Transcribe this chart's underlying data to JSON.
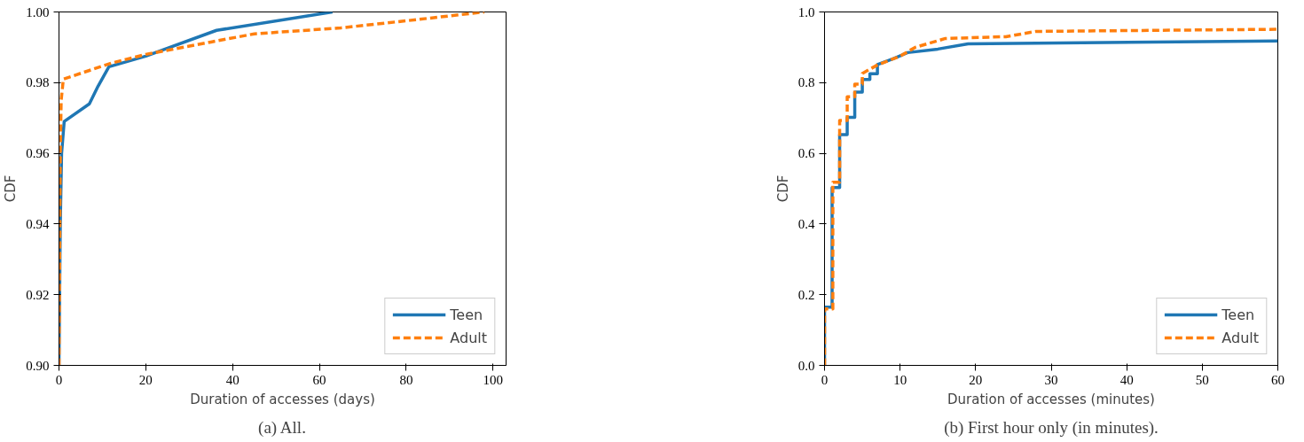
{
  "chart_data": [
    {
      "type": "line",
      "xlabel": "Duration of accesses (days)",
      "ylabel": "CDF",
      "annotations": [
        "(a) All."
      ],
      "xlim": [
        0,
        103
      ],
      "ylim": [
        0.9,
        1.0
      ],
      "xticks": [
        0,
        20,
        40,
        60,
        80,
        100
      ],
      "yticks": [
        {
          "value": 0.9,
          "label": "0.90"
        },
        0.92,
        0.94,
        0.96,
        0.98,
        {
          "value": 1.0,
          "label": "1.00"
        }
      ],
      "grid": false,
      "legend": "bottom right",
      "series": [
        {
          "name": "Teen",
          "color": "#1f77b4",
          "line_style": "solid",
          "x": [
            0,
            0.3,
            0.6,
            1.2,
            7,
            9,
            11.5,
            20,
            36.3,
            63
          ],
          "values": [
            0.9,
            0.94,
            0.96,
            0.969,
            0.974,
            0.979,
            0.9845,
            0.9875,
            0.9948,
            1.0
          ]
        },
        {
          "name": "Adult",
          "color": "#ff7f0e",
          "line_style": "dashed",
          "x": [
            0,
            0.3,
            0.5,
            1,
            12,
            20,
            35,
            45,
            65,
            80,
            98
          ],
          "values": [
            0.9,
            0.96,
            0.975,
            0.981,
            0.9855,
            0.988,
            0.9915,
            0.9938,
            0.9955,
            0.9975,
            1.0
          ]
        }
      ]
    },
    {
      "type": "line",
      "xlabel": "Duration of accesses (minutes)",
      "ylabel": "CDF",
      "annotations": [
        "(b) First hour only (in minutes)."
      ],
      "xlim": [
        0,
        60
      ],
      "ylim": [
        0,
        1.0
      ],
      "xticks": [
        0,
        10,
        20,
        30,
        40,
        50,
        60
      ],
      "yticks": [
        {
          "value": 0,
          "label": "0.0"
        },
        0.2,
        0.4,
        0.6,
        0.8,
        {
          "value": 1.0,
          "label": "1.0"
        }
      ],
      "grid": false,
      "legend": "bottom right",
      "series": [
        {
          "name": "Teen",
          "color": "#1f77b4",
          "line_style": "solid",
          "x": [
            0,
            0,
            1,
            1,
            2,
            2,
            3,
            3,
            4,
            4,
            5,
            5,
            6,
            6,
            7,
            7,
            9,
            11,
            15,
            19,
            60
          ],
          "values": [
            0,
            0.165,
            0.165,
            0.503,
            0.503,
            0.653,
            0.653,
            0.702,
            0.702,
            0.773,
            0.773,
            0.809,
            0.809,
            0.825,
            0.825,
            0.851,
            0.867,
            0.885,
            0.895,
            0.91,
            0.918
          ]
        },
        {
          "name": "Adult",
          "color": "#ff7f0e",
          "line_style": "dashed",
          "x": [
            0,
            0,
            1.1,
            1.1,
            2,
            2,
            3,
            3,
            4,
            4,
            5,
            5,
            7,
            10,
            12,
            16,
            24,
            28,
            60
          ],
          "values": [
            0,
            0.16,
            0.16,
            0.518,
            0.518,
            0.693,
            0.693,
            0.76,
            0.76,
            0.796,
            0.796,
            0.826,
            0.85,
            0.875,
            0.9,
            0.925,
            0.93,
            0.945,
            0.951
          ]
        }
      ]
    }
  ]
}
